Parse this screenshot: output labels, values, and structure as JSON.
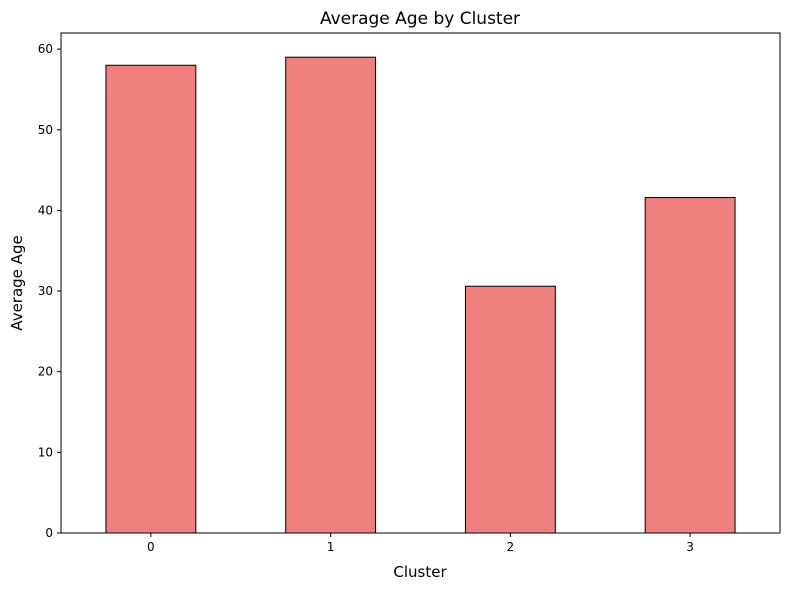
{
  "chart_data": {
    "type": "bar",
    "title": "Average Age by Cluster",
    "xlabel": "Cluster",
    "ylabel": "Average Age",
    "categories": [
      "0",
      "1",
      "2",
      "3"
    ],
    "values": [
      58.0,
      59.0,
      30.6,
      41.6
    ],
    "ylim": [
      0,
      62
    ],
    "yticks": [
      "0",
      "10",
      "20",
      "30",
      "40",
      "50",
      "60"
    ],
    "grid": false,
    "bar_color": "#f08080",
    "bar_edge_color": "#000000"
  }
}
